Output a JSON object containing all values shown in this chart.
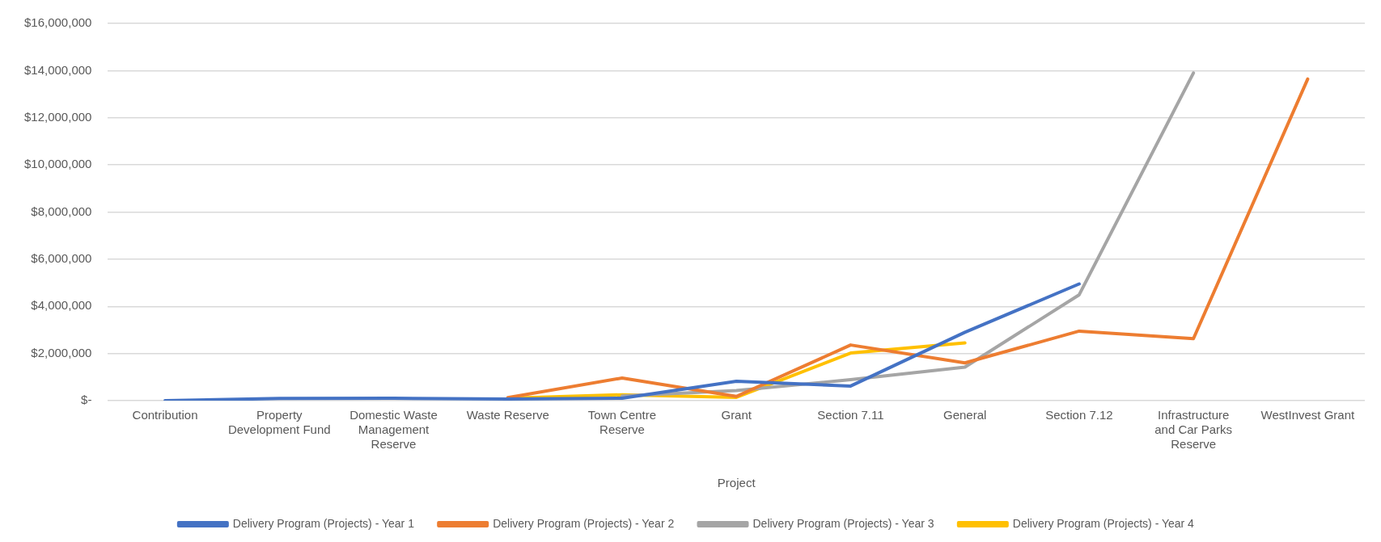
{
  "chart_data": {
    "type": "line",
    "xlabel": "Project",
    "categories": [
      "Contribution",
      "Property Development Fund",
      "Domestic Waste Management Reserve",
      "Waste Reserve",
      "Town Centre Reserve",
      "Grant",
      "Section 7.11",
      "General",
      "Section 7.12",
      "Infrastructure and Car Parks Reserve",
      "WestInvest Grant"
    ],
    "series": [
      {
        "name": "Delivery Program (Projects) - Year 1",
        "color": "#4472c4",
        "values": [
          0,
          90000,
          100000,
          70000,
          100000,
          820000,
          620000,
          2900000,
          4950000,
          null,
          null
        ]
      },
      {
        "name": "Delivery Program (Projects) - Year 2",
        "color": "#ed7d31",
        "values": [
          null,
          null,
          null,
          130000,
          960000,
          180000,
          2360000,
          1600000,
          2950000,
          2630000,
          13640000
        ]
      },
      {
        "name": "Delivery Program (Projects) - Year 3",
        "color": "#a5a5a5",
        "values": [
          null,
          null,
          null,
          null,
          200000,
          430000,
          890000,
          1420000,
          4490000,
          13900000,
          null
        ]
      },
      {
        "name": "Delivery Program (Projects) - Year 4",
        "color": "#ffc000",
        "values": [
          null,
          null,
          null,
          100000,
          250000,
          140000,
          2020000,
          2450000,
          null,
          null,
          null
        ]
      }
    ],
    "ylim": [
      0,
      16000000
    ],
    "yticks": [
      {
        "value": 0,
        "label": "$-"
      },
      {
        "value": 2000000,
        "label": "$2,000,000"
      },
      {
        "value": 4000000,
        "label": "$4,000,000"
      },
      {
        "value": 6000000,
        "label": "$6,000,000"
      },
      {
        "value": 8000000,
        "label": "$8,000,000"
      },
      {
        "value": 10000000,
        "label": "$10,000,000"
      },
      {
        "value": 12000000,
        "label": "$12,000,000"
      },
      {
        "value": 14000000,
        "label": "$14,000,000"
      },
      {
        "value": 16000000,
        "label": "$16,000,000"
      }
    ],
    "grid": "y",
    "legend": "bottom",
    "marker": "none",
    "line_style": "solid"
  }
}
